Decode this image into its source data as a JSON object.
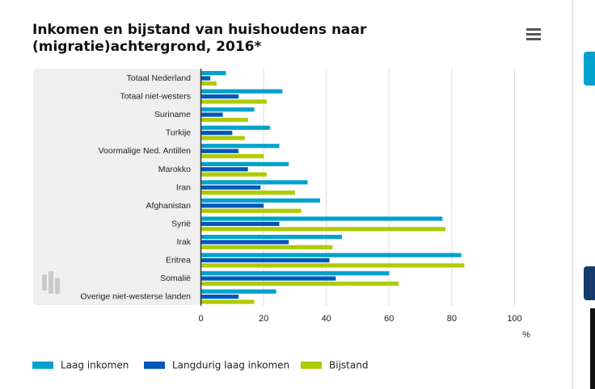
{
  "chart_data": {
    "type": "bar",
    "orientation": "horizontal",
    "title": "Inkomen en bijstand van huishoudens naar (migratie)achtergrond, 2016*",
    "unit_label": "%",
    "xlim": [
      0,
      100
    ],
    "x_ticks": [
      "0",
      "20",
      "40",
      "60",
      "80",
      "100"
    ],
    "grid": true,
    "legend_position": "bottom",
    "categories": [
      "Totaal Nederland",
      "Totaal niet-westers",
      "Suriname",
      "Turkije",
      "Voormalige Ned. Antillen",
      "Marokko",
      "Iran",
      "Afghanistan",
      "Syrië",
      "Irak",
      "Eritrea",
      "Somalië",
      "Overige niet-westerse landen"
    ],
    "series": [
      {
        "name": "Laag inkomen",
        "color": "#00a1cd",
        "values": [
          8,
          26,
          17,
          22,
          25,
          28,
          34,
          38,
          77,
          45,
          83,
          60,
          24
        ]
      },
      {
        "name": "Langdurig laag inkomen",
        "color": "#0058b8",
        "values": [
          3,
          12,
          7,
          10,
          12,
          15,
          19,
          20,
          25,
          28,
          41,
          43,
          12
        ]
      },
      {
        "name": "Bijstand",
        "color": "#afcb05",
        "values": [
          5,
          21,
          15,
          14,
          20,
          21,
          30,
          32,
          78,
          42,
          84,
          63,
          17
        ]
      }
    ]
  },
  "menu_icon": "hamburger-menu-icon",
  "colors": {
    "plot_band": "#efefef",
    "grid": "#dddddd",
    "axis": "#333333"
  }
}
